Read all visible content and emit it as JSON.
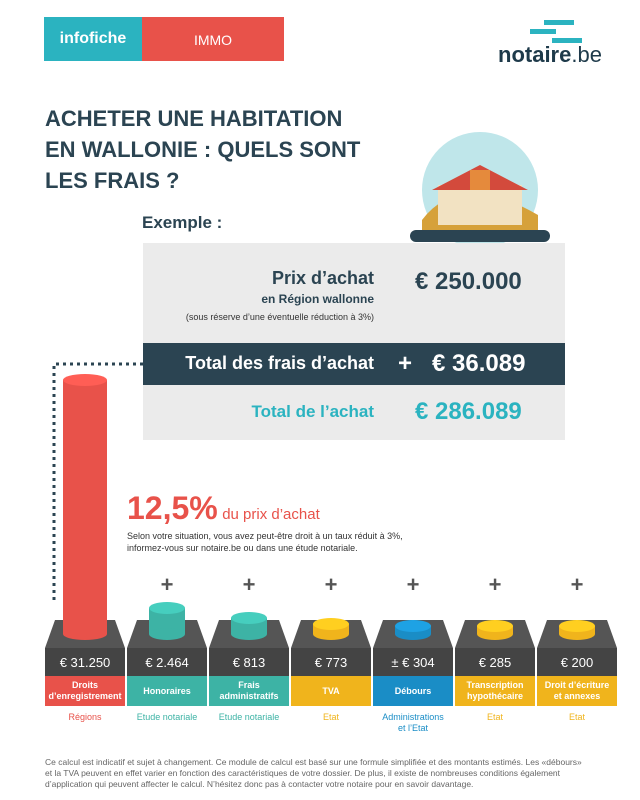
{
  "header": {
    "tag": "infofiche",
    "category": "IMMO",
    "logo_main": "notaire",
    "logo_suffix": ".be"
  },
  "title": [
    "ACHETER UNE HABITATION",
    "EN WALLONIE : QUELS SONT",
    "LES FRAIS ?"
  ],
  "example": {
    "heading": "Exemple :",
    "price_label": "Prix d’achat",
    "price_region": "en Région wallonne",
    "price_note": "(sous réserve d’une éventuelle réduction à 3%)",
    "price_value": "€ 250.000",
    "fees_label": "Total des frais d’achat",
    "fees_plus": "+",
    "fees_value": "€ 36.089",
    "total_label": "Total de l’achat",
    "total_value": "€ 286.089"
  },
  "highlight": {
    "percent": "12,5%",
    "text": "du prix d’achat",
    "note": [
      "Selon votre situation, vous avez peut-être droit à un taux réduit à 3%,",
      "informez-vous sur notaire.be ou dans une étude notariale."
    ]
  },
  "plus": "+",
  "items": [
    {
      "amount": "€ 31.250",
      "label": [
        "Droits",
        "d’enregistrement"
      ],
      "source": "Régions",
      "color": "#e8524a"
    },
    {
      "amount": "€ 2.464",
      "label": [
        "Honoraires"
      ],
      "source": "Etude notariale",
      "color": "#3db3a5"
    },
    {
      "amount": "€ 813",
      "label": [
        "Frais",
        "administratifs"
      ],
      "source": "Etude notariale",
      "color": "#3db3a5"
    },
    {
      "amount": "€ 773",
      "label": [
        "TVA"
      ],
      "source": "Etat",
      "color": "#f0b41c"
    },
    {
      "amount": "± € 304",
      "label": [
        "Débours"
      ],
      "source": [
        "Administrations",
        "et l’Etat"
      ],
      "color": "#1a8dc6"
    },
    {
      "amount": "€ 285",
      "label": [
        "Transcription",
        "hypothécaire"
      ],
      "source": "Etat",
      "color": "#f0b41c"
    },
    {
      "amount": "€ 200",
      "label": [
        "Droit d’écriture",
        "et annexes"
      ],
      "source": "Etat",
      "color": "#f0b41c"
    }
  ],
  "footer": [
    "Ce calcul est indicatif et sujet à changement. Ce module de calcul est basé sur une formule simplifiée et des montants estimés. Les «débours»",
    "et la TVA peuvent en effet varier en fonction des caractéristiques de votre dossier. De plus, il existe de nombreuses conditions également",
    "d’application qui peuvent affecter le calcul. N’hésitez donc pas à contacter votre notaire pour en savoir davantage."
  ]
}
